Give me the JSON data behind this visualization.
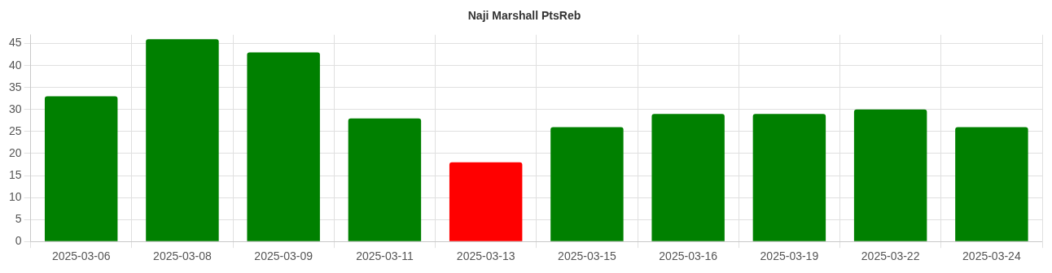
{
  "chart_data": {
    "type": "bar",
    "title": "Naji Marshall PtsReb",
    "categories": [
      "2025-03-06",
      "2025-03-08",
      "2025-03-09",
      "2025-03-11",
      "2025-03-13",
      "2025-03-15",
      "2025-03-16",
      "2025-03-19",
      "2025-03-22",
      "2025-03-24"
    ],
    "values": [
      33,
      46,
      43,
      28,
      18,
      26,
      29,
      29,
      30,
      26
    ],
    "colors": [
      "#008000",
      "#008000",
      "#008000",
      "#008000",
      "#ff0000",
      "#008000",
      "#008000",
      "#008000",
      "#008000",
      "#008000"
    ],
    "ylim": [
      0,
      47
    ],
    "yticks": [
      0,
      5,
      10,
      15,
      20,
      25,
      30,
      35,
      40,
      45
    ],
    "grid": true,
    "legend": false
  }
}
